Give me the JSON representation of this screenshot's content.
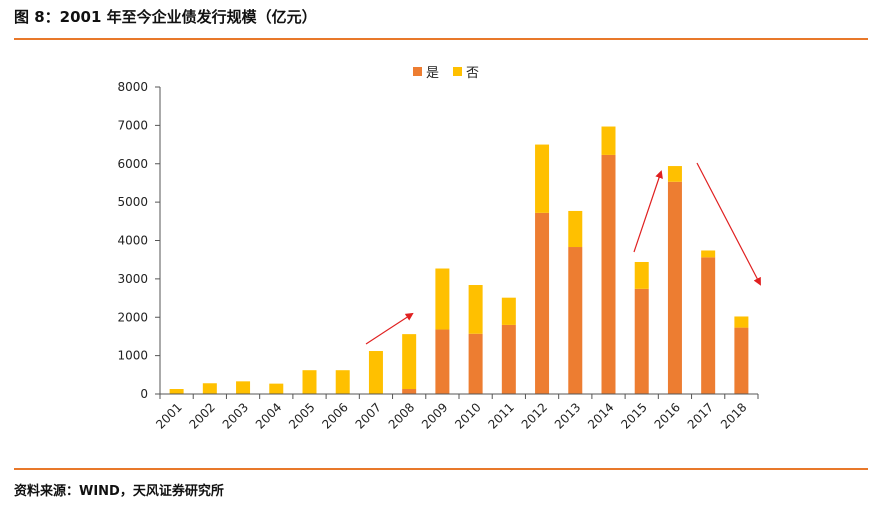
{
  "header": {
    "title": "图 8：2001 年至今企业债发行规模（亿元）"
  },
  "footer": {
    "source": "资料来源：WIND，天风证券研究所"
  },
  "colors": {
    "accent": "#e8782a",
    "series_yes": "#ed7d31",
    "series_no": "#ffc000",
    "arrow": "#e02020"
  },
  "chart_data": {
    "type": "bar",
    "stacked": true,
    "title": "2001 年至今企业债发行规模（亿元）",
    "xlabel": "",
    "ylabel": "",
    "ylim": [
      0,
      8000
    ],
    "yticks": [
      0,
      1000,
      2000,
      3000,
      4000,
      5000,
      6000,
      7000,
      8000
    ],
    "legend_position": "top-center",
    "categories": [
      "2001",
      "2002",
      "2003",
      "2004",
      "2005",
      "2006",
      "2007",
      "2008",
      "2009",
      "2010",
      "2011",
      "2012",
      "2013",
      "2014",
      "2015",
      "2016",
      "2017",
      "2018"
    ],
    "series": [
      {
        "name": "是",
        "color": "#ed7d31",
        "values": [
          0,
          0,
          0,
          0,
          0,
          0,
          0,
          130,
          1680,
          1570,
          1800,
          4720,
          3830,
          6230,
          2740,
          5530,
          3560,
          1730
        ]
      },
      {
        "name": "否",
        "color": "#ffc000",
        "values": [
          130,
          280,
          330,
          270,
          620,
          620,
          1120,
          1430,
          1590,
          1270,
          710,
          1780,
          940,
          740,
          700,
          410,
          180,
          290
        ]
      }
    ]
  }
}
